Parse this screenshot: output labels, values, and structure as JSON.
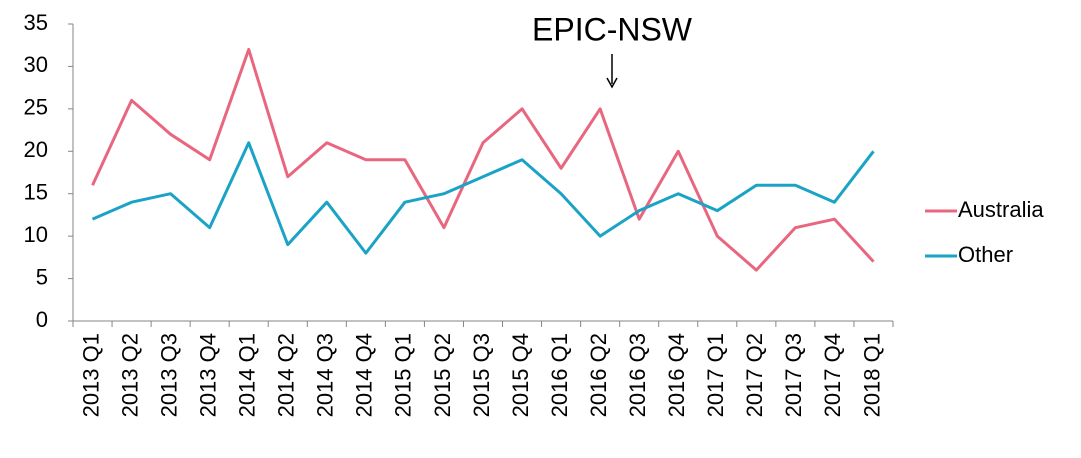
{
  "chart_data": {
    "type": "line",
    "annotation": "EPIC-NSW",
    "categories": [
      "2013 Q1",
      "2013 Q2",
      "2013 Q3",
      "2013 Q4",
      "2014 Q1",
      "2014 Q2",
      "2014 Q3",
      "2014 Q4",
      "2015 Q1",
      "2015 Q2",
      "2015 Q3",
      "2015 Q4",
      "2016 Q1",
      "2016 Q2",
      "2016 Q3",
      "2016 Q4",
      "2017 Q1",
      "2017 Q2",
      "2017 Q3",
      "2017 Q4",
      "2018 Q1"
    ],
    "series": [
      {
        "name": "Australia",
        "color": "#e8677f",
        "values": [
          16,
          26,
          22,
          19,
          32,
          17,
          21,
          19,
          19,
          11,
          21,
          25,
          18,
          25,
          12,
          20,
          10,
          6,
          11,
          12,
          7
        ]
      },
      {
        "name": "Other",
        "color": "#1ba3c6",
        "values": [
          12,
          14,
          15,
          11,
          21,
          9,
          14,
          8,
          14,
          15,
          17,
          19,
          15,
          10,
          13,
          15,
          13,
          16,
          16,
          14,
          20
        ]
      }
    ],
    "ylim": [
      0,
      35
    ],
    "yticks": [
      0,
      5,
      10,
      15,
      20,
      25,
      30,
      35
    ],
    "legend": "right",
    "grid": false
  }
}
